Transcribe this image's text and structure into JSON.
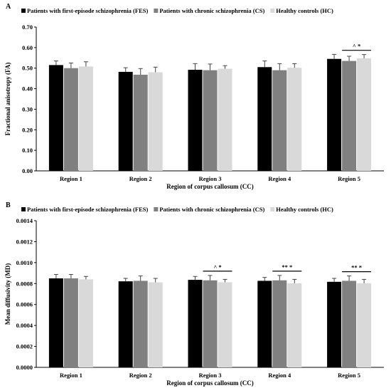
{
  "chart_data": [
    {
      "type": "bar",
      "panel_label": "A",
      "categories": [
        "Region 1",
        "Region 2",
        "Region 3",
        "Region 4",
        "Region 5"
      ],
      "series": [
        {
          "name": "Patients with first-episode schizophrenia (FES)",
          "color": "#000000",
          "values": [
            0.515,
            0.482,
            0.492,
            0.505,
            0.545
          ],
          "errors": [
            0.02,
            0.02,
            0.03,
            0.03,
            0.022
          ]
        },
        {
          "name": "Patients with chronic schizophrenia (CS)",
          "color": "#808080",
          "values": [
            0.5,
            0.468,
            0.49,
            0.49,
            0.535
          ],
          "errors": [
            0.025,
            0.03,
            0.03,
            0.032,
            0.023
          ]
        },
        {
          "name": "Healthy controls (HC)",
          "color": "#d9d9d9",
          "values": [
            0.508,
            0.48,
            0.497,
            0.502,
            0.548
          ],
          "errors": [
            0.023,
            0.025,
            0.015,
            0.02,
            0.018
          ]
        }
      ],
      "xlabel": "Region of corpus callosum (CC)",
      "ylabel": "Fractional anisotropy (FA)",
      "ylim": [
        0,
        0.7
      ],
      "yticks": [
        "0.00",
        "0.10",
        "0.20",
        "0.30",
        "0.40",
        "0.50",
        "0.60",
        "0.70"
      ],
      "legend_position": "top",
      "grid": false,
      "annotations": [
        {
          "category_index": 4,
          "from_series": 1,
          "to_series": 2,
          "text": "^ *"
        }
      ]
    },
    {
      "type": "bar",
      "panel_label": "B",
      "categories": [
        "Region 1",
        "Region 2",
        "Region 3",
        "Region 4",
        "Region 5"
      ],
      "series": [
        {
          "name": "Patients with first-episode schizophrenia (FES)",
          "color": "#000000",
          "values": [
            0.00091,
            0.00088,
            0.000895,
            0.000885,
            0.000875
          ],
          "errors": [
            4e-05,
            3e-05,
            3.5e-05,
            3.5e-05,
            3.5e-05
          ]
        },
        {
          "name": "Patients with chronic schizophrenia (CS)",
          "color": "#808080",
          "values": [
            0.00091,
            0.000885,
            0.00089,
            0.00089,
            0.000885
          ],
          "errors": [
            4e-05,
            5e-05,
            5e-05,
            5e-05,
            5e-05
          ]
        },
        {
          "name": "Healthy controls (HC)",
          "color": "#d9d9d9",
          "values": [
            0.0009,
            0.00087,
            0.00087,
            0.00086,
            0.00086
          ],
          "errors": [
            3e-05,
            4e-05,
            3e-05,
            4e-05,
            4e-05
          ]
        }
      ],
      "xlabel": "Region of corpus callosum (CC)",
      "ylabel": "Mean diffusivity (MD)",
      "ylim": [
        0,
        0.0015
      ],
      "yticks": [
        "0.0000",
        "0.0002",
        "0.0004",
        "0.0006",
        "0.0008",
        "0.0010",
        "0.0012",
        "0.0014"
      ],
      "legend_position": "top",
      "grid": false,
      "annotations": [
        {
          "category_index": 2,
          "from_series": 1,
          "to_series": 2,
          "text": "^ *"
        },
        {
          "category_index": 3,
          "from_series": 1,
          "to_series": 2,
          "text": "** *"
        },
        {
          "category_index": 4,
          "from_series": 1,
          "to_series": 2,
          "text": "** *"
        }
      ]
    }
  ]
}
